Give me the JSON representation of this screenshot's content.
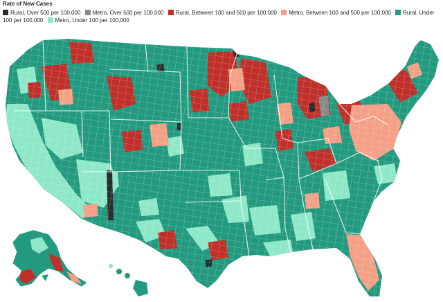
{
  "legend": {
    "title": "Rate of New Cases",
    "items": [
      {
        "key": "rural_over_500",
        "label": "Rural, Over 500 per 100,000",
        "color": "#2b2b2b"
      },
      {
        "key": "metro_over_500",
        "label": "Metro, Over 500 per 100,000",
        "color": "#8a8a8a"
      },
      {
        "key": "rural_100_500",
        "label": "Rural, Between 100 and 500 per 100,000",
        "color": "#c0302a"
      },
      {
        "key": "metro_100_500",
        "label": "Metro, Between 100 and 500 per 100,000",
        "color": "#f3a086"
      },
      {
        "key": "rural_under_100",
        "label": "Rural, Under 100 per 100,000",
        "color": "#239a7f"
      },
      {
        "key": "metro_under_100",
        "label": "Metro, Under 100 per 100,000",
        "color": "#8ee8c8"
      }
    ]
  },
  "map": {
    "subject": "United States counties",
    "base_color": "#239a7f",
    "boundary_color": "#ffffff"
  }
}
